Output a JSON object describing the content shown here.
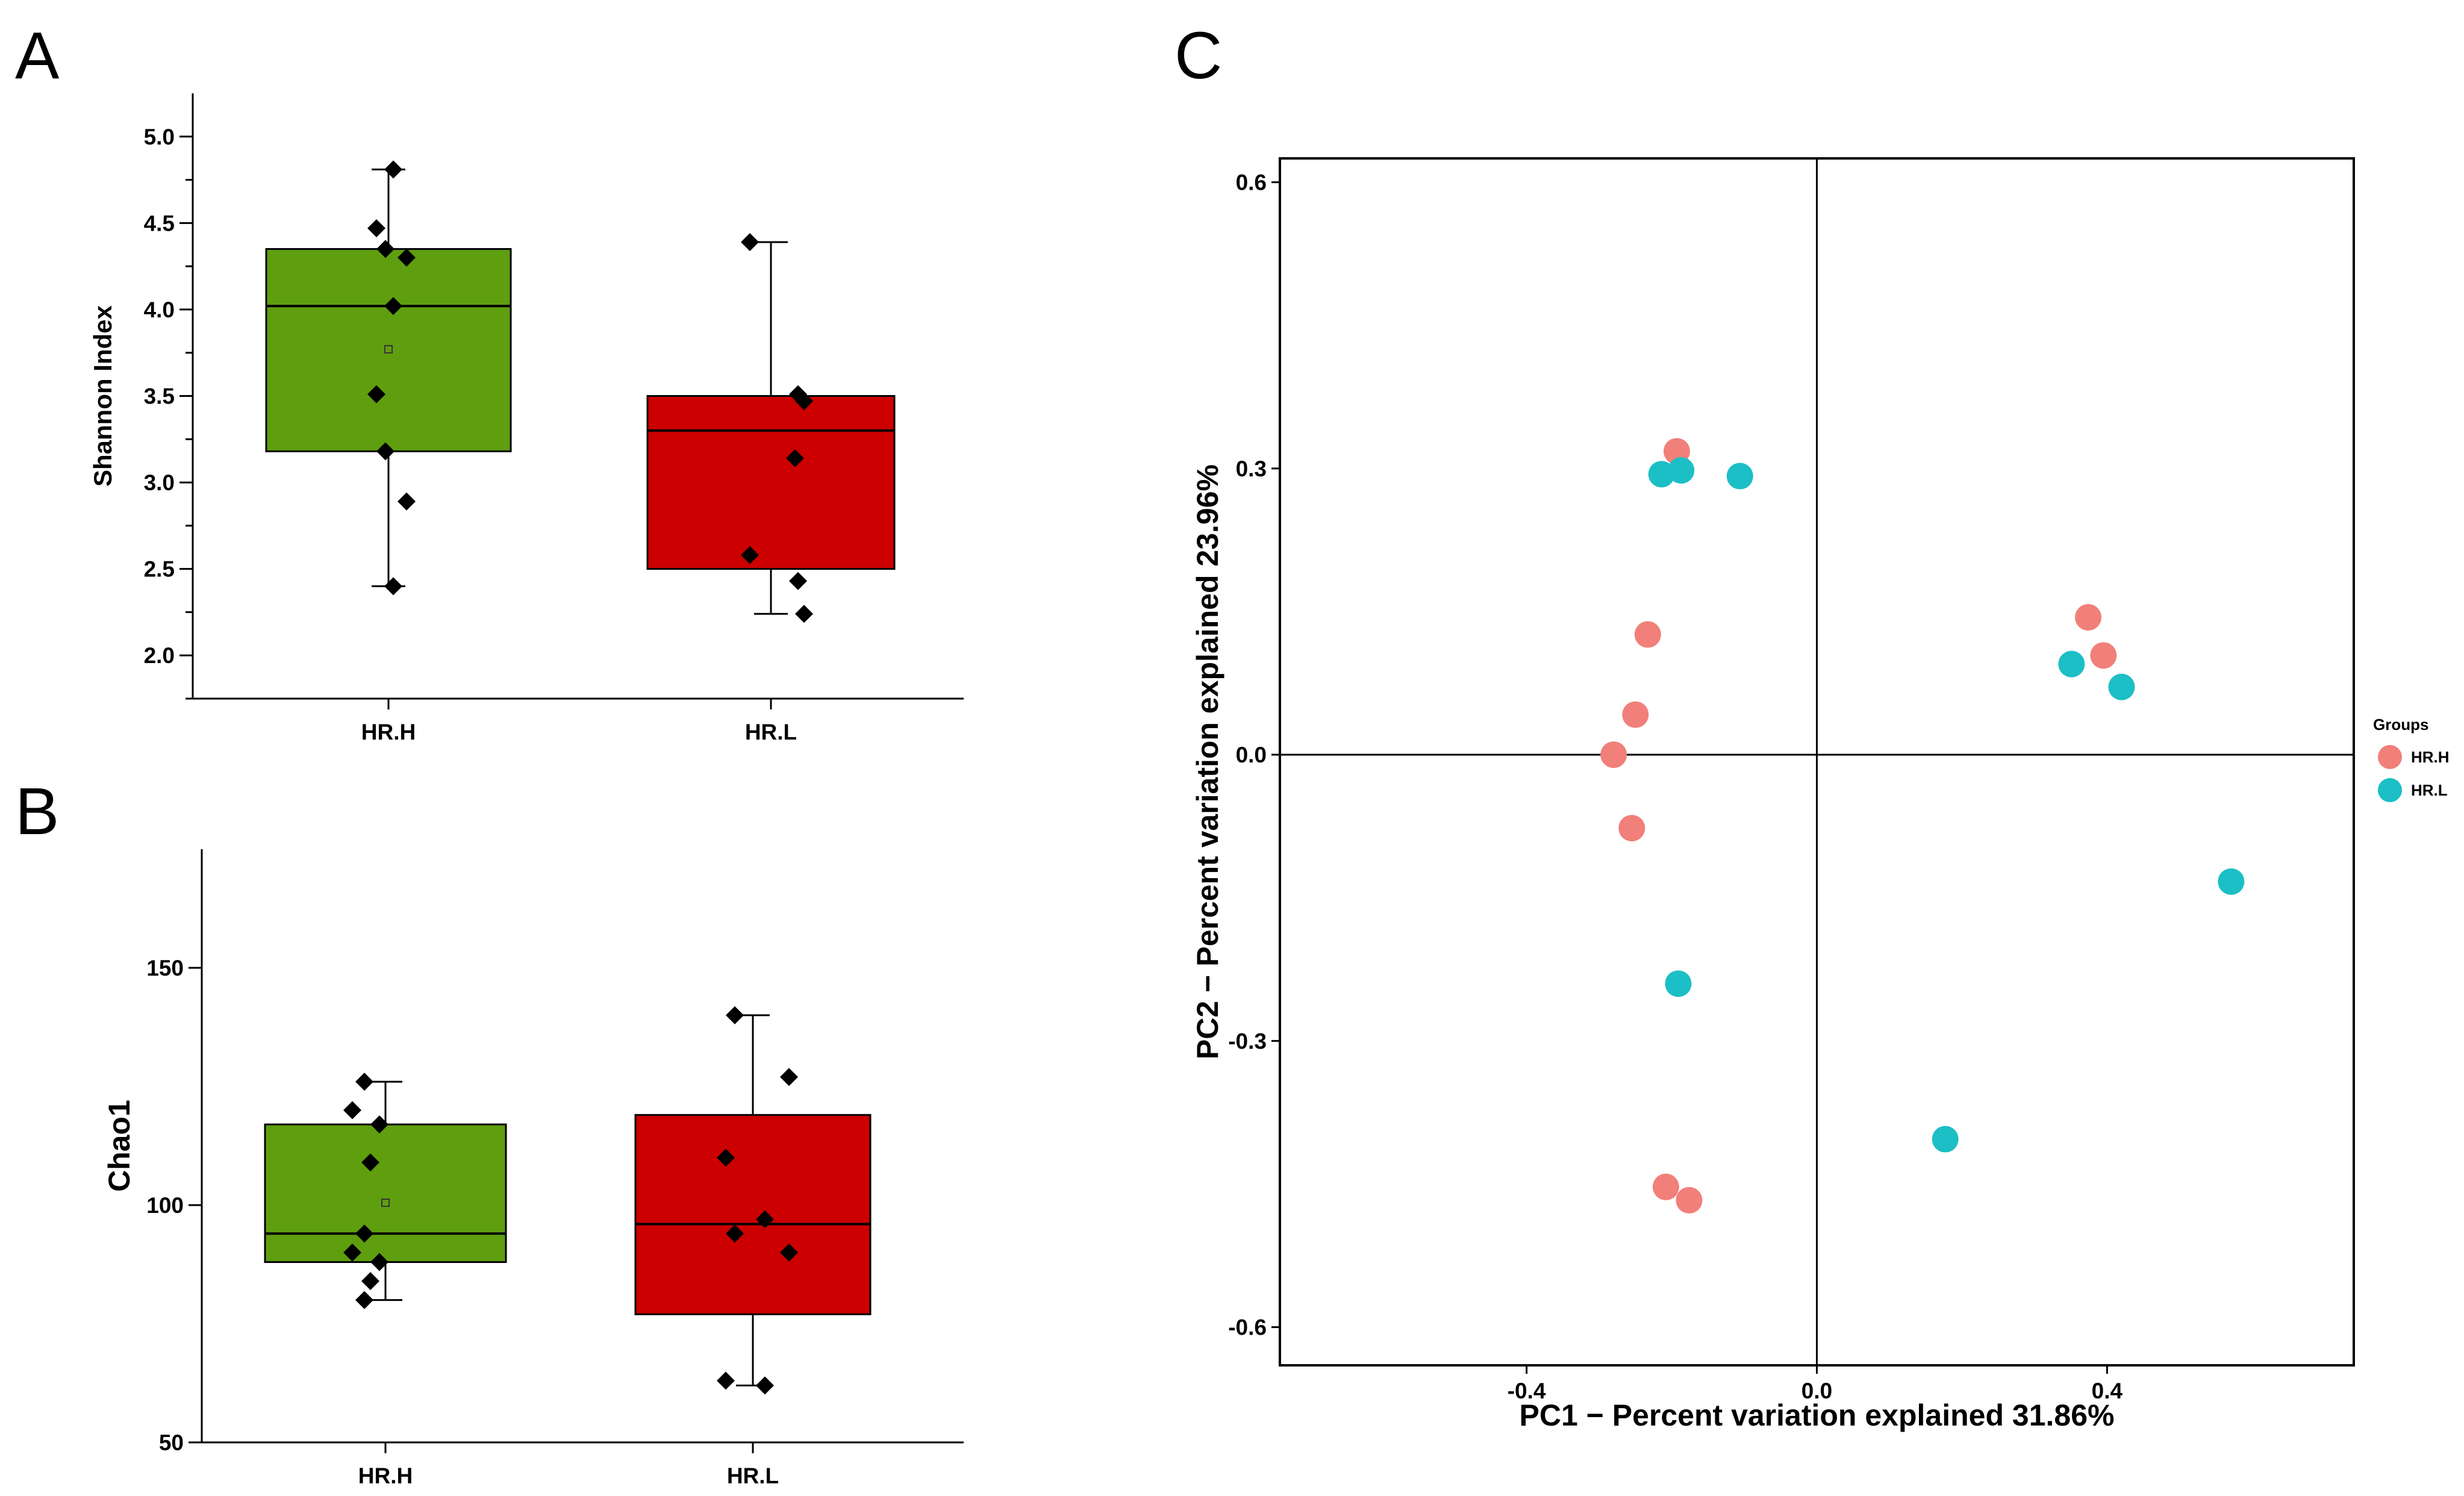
{
  "colors": {
    "group_high": "#5f9e0f",
    "group_low": "#cc0000",
    "pca_hrh": "#f17f7a",
    "pca_hrl": "#1bbfc5",
    "axis": "#000000"
  },
  "chart_data": [
    {
      "panel": "A",
      "type": "box",
      "title": "",
      "xlabel": "",
      "ylabel": "Shannon Index",
      "ylim": [
        1.75,
        5.25
      ],
      "yticks": [
        "2.0",
        "2.5",
        "3.0",
        "3.5",
        "4.0",
        "4.5",
        "5.0"
      ],
      "categories": [
        "HR.H",
        "HR.L"
      ],
      "boxes": [
        {
          "name": "HR.H",
          "q1": 3.18,
          "median": 4.02,
          "q3": 4.35,
          "whisker_low": 2.4,
          "whisker_high": 4.81,
          "mean": 3.77,
          "points": [
            4.81,
            4.47,
            4.35,
            4.3,
            4.02,
            3.51,
            3.18,
            2.89,
            2.4
          ]
        },
        {
          "name": "HR.L",
          "q1": 2.5,
          "median": 3.3,
          "q3": 3.5,
          "whisker_low": 2.24,
          "whisker_high": 4.39,
          "mean": null,
          "points": [
            4.39,
            3.51,
            3.47,
            3.14,
            2.58,
            2.43,
            2.24
          ]
        }
      ]
    },
    {
      "panel": "B",
      "type": "box",
      "title": "",
      "xlabel": "",
      "ylabel": "Chao1",
      "ylim": [
        50,
        175
      ],
      "yticks": [
        "50",
        "100",
        "150"
      ],
      "categories": [
        "HR.H",
        "HR.L"
      ],
      "boxes": [
        {
          "name": "HR.H",
          "q1": 88,
          "median": 94,
          "q3": 117,
          "whisker_low": 80,
          "whisker_high": 126,
          "mean": 100.5,
          "points": [
            126,
            120,
            117,
            109,
            94,
            90,
            88,
            84,
            80
          ]
        },
        {
          "name": "HR.L",
          "q1": 77,
          "median": 96,
          "q3": 119,
          "whisker_low": 62,
          "whisker_high": 140,
          "mean": null,
          "points": [
            140,
            127,
            110,
            97,
            94,
            90,
            63,
            62
          ]
        }
      ]
    },
    {
      "panel": "C",
      "type": "scatter",
      "title": "",
      "xlabel": "PC1 − Percent variation explained 31.86%",
      "ylabel": "PC2 − Percent variation explained 23.96%",
      "xlim": [
        -0.74,
        0.74
      ],
      "ylim": [
        -0.64,
        0.625
      ],
      "xticks": [
        "-0.4",
        "0.0",
        "0.4"
      ],
      "yticks": [
        "-0.6",
        "-0.3",
        "0.0",
        "0.3",
        "0.6"
      ],
      "legend_title": "Groups",
      "legend_position": "right",
      "series": [
        {
          "name": "HR.H",
          "points": [
            [
              -0.193,
              0.318
            ],
            [
              -0.233,
              0.126
            ],
            [
              -0.25,
              0.042
            ],
            [
              -0.28,
              0.0
            ],
            [
              -0.255,
              -0.077
            ],
            [
              0.374,
              0.144
            ],
            [
              0.395,
              0.104
            ],
            [
              -0.208,
              -0.453
            ],
            [
              -0.176,
              -0.467
            ]
          ]
        },
        {
          "name": "HR.L",
          "points": [
            [
              -0.214,
              0.294
            ],
            [
              -0.187,
              0.298
            ],
            [
              -0.106,
              0.292
            ],
            [
              0.351,
              0.095
            ],
            [
              0.42,
              0.071
            ],
            [
              0.571,
              -0.133
            ],
            [
              -0.191,
              -0.24
            ],
            [
              0.177,
              -0.403
            ]
          ]
        }
      ]
    }
  ]
}
